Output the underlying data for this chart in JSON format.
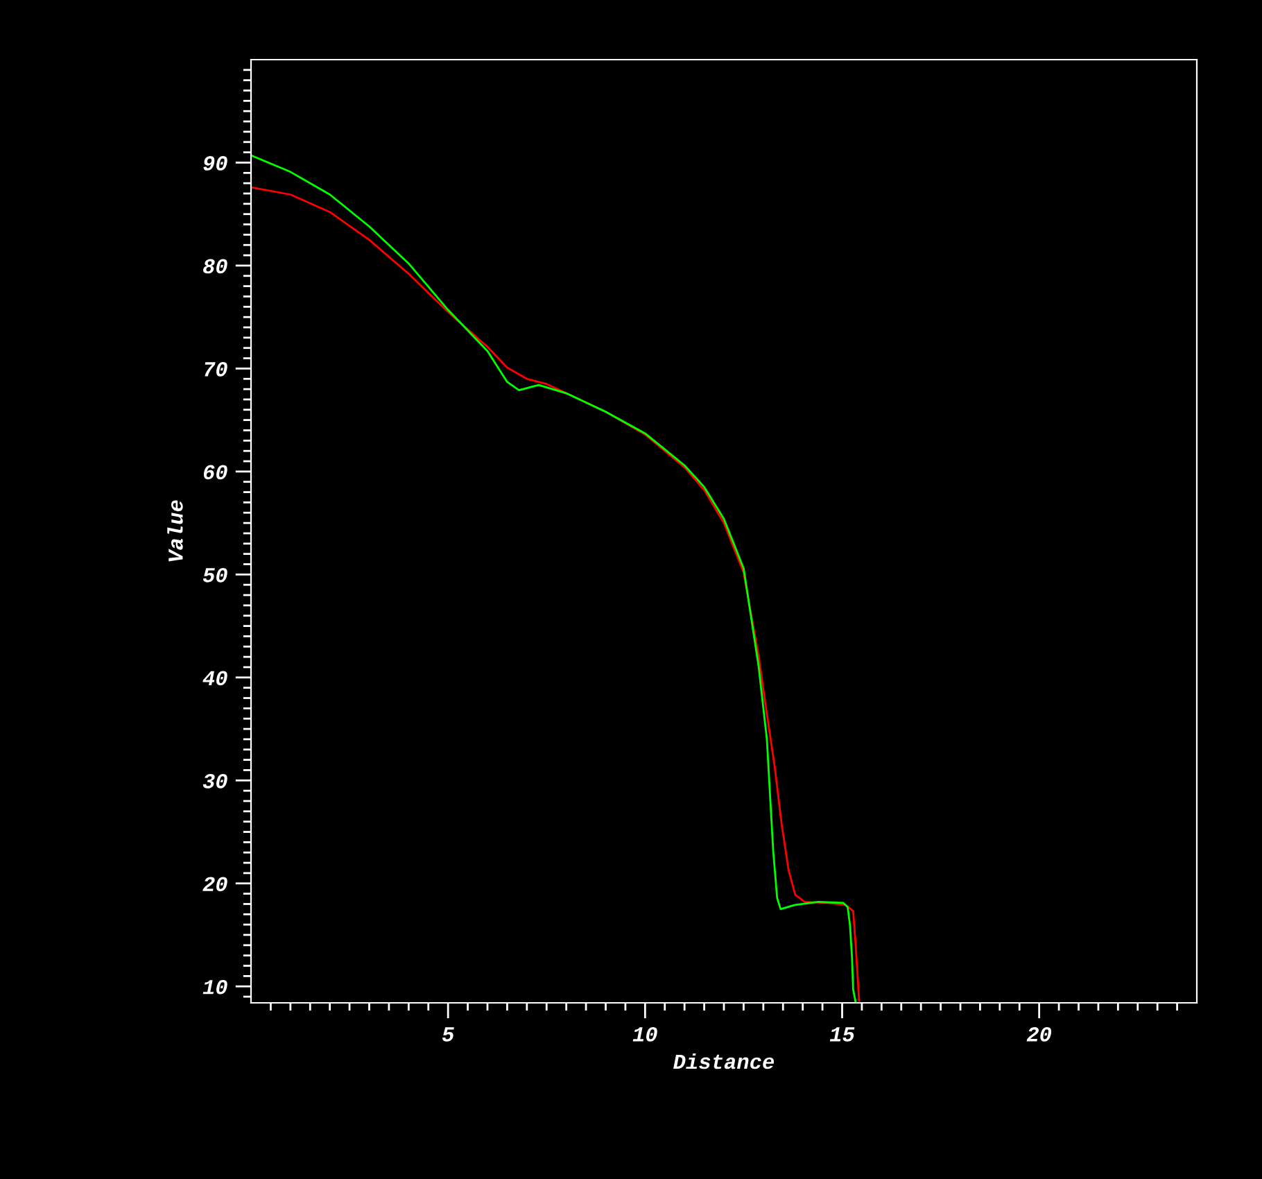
{
  "chart_data": {
    "type": "line",
    "xlabel": "Distance",
    "ylabel": "Value",
    "xlim": [
      0,
      24
    ],
    "ylim": [
      8.4,
      100
    ],
    "xticks": [
      {
        "value": 0.5,
        "label": null
      },
      {
        "value": 1,
        "label": null
      },
      {
        "value": 1.5,
        "label": null
      },
      {
        "value": 2,
        "label": null
      },
      {
        "value": 2.5,
        "label": null
      },
      {
        "value": 3,
        "label": null
      },
      {
        "value": 3.5,
        "label": null
      },
      {
        "value": 4,
        "label": null
      },
      {
        "value": 4.5,
        "label": null
      },
      5,
      {
        "value": 5.5,
        "label": null
      },
      {
        "value": 6,
        "label": null
      },
      {
        "value": 6.5,
        "label": null
      },
      {
        "value": 7,
        "label": null
      },
      {
        "value": 7.5,
        "label": null
      },
      {
        "value": 8,
        "label": null
      },
      {
        "value": 8.5,
        "label": null
      },
      {
        "value": 9,
        "label": null
      },
      {
        "value": 9.5,
        "label": null
      },
      10,
      {
        "value": 10.5,
        "label": null
      },
      {
        "value": 11,
        "label": null
      },
      {
        "value": 11.5,
        "label": null
      },
      {
        "value": 12,
        "label": null
      },
      {
        "value": 12.5,
        "label": null
      },
      {
        "value": 13,
        "label": null
      },
      {
        "value": 13.5,
        "label": null
      },
      {
        "value": 14,
        "label": null
      },
      {
        "value": 14.5,
        "label": null
      },
      15,
      {
        "value": 15.5,
        "label": null
      },
      {
        "value": 16,
        "label": null
      },
      {
        "value": 16.5,
        "label": null
      },
      {
        "value": 17,
        "label": null
      },
      {
        "value": 17.5,
        "label": null
      },
      {
        "value": 18,
        "label": null
      },
      {
        "value": 18.5,
        "label": null
      },
      {
        "value": 19,
        "label": null
      },
      {
        "value": 19.5,
        "label": null
      },
      20,
      {
        "value": 20.5,
        "label": null
      },
      {
        "value": 21,
        "label": null
      },
      {
        "value": 21.5,
        "label": null
      },
      {
        "value": 22,
        "label": null
      },
      {
        "value": 22.5,
        "label": null
      },
      {
        "value": 23,
        "label": null
      },
      {
        "value": 23.5,
        "label": null
      }
    ],
    "yticks": [
      {
        "value": 9,
        "label": null
      },
      10,
      {
        "value": 11,
        "label": null
      },
      {
        "value": 12,
        "label": null
      },
      {
        "value": 13,
        "label": null
      },
      {
        "value": 14,
        "label": null
      },
      {
        "value": 15,
        "label": null
      },
      {
        "value": 16,
        "label": null
      },
      {
        "value": 17,
        "label": null
      },
      {
        "value": 18,
        "label": null
      },
      {
        "value": 19,
        "label": null
      },
      20,
      {
        "value": 21,
        "label": null
      },
      {
        "value": 22,
        "label": null
      },
      {
        "value": 23,
        "label": null
      },
      {
        "value": 24,
        "label": null
      },
      {
        "value": 25,
        "label": null
      },
      {
        "value": 26,
        "label": null
      },
      {
        "value": 27,
        "label": null
      },
      {
        "value": 28,
        "label": null
      },
      {
        "value": 29,
        "label": null
      },
      30,
      {
        "value": 31,
        "label": null
      },
      {
        "value": 32,
        "label": null
      },
      {
        "value": 33,
        "label": null
      },
      {
        "value": 34,
        "label": null
      },
      {
        "value": 35,
        "label": null
      },
      {
        "value": 36,
        "label": null
      },
      {
        "value": 37,
        "label": null
      },
      {
        "value": 38,
        "label": null
      },
      {
        "value": 39,
        "label": null
      },
      40,
      {
        "value": 41,
        "label": null
      },
      {
        "value": 42,
        "label": null
      },
      {
        "value": 43,
        "label": null
      },
      {
        "value": 44,
        "label": null
      },
      {
        "value": 45,
        "label": null
      },
      {
        "value": 46,
        "label": null
      },
      {
        "value": 47,
        "label": null
      },
      {
        "value": 48,
        "label": null
      },
      {
        "value": 49,
        "label": null
      },
      50,
      {
        "value": 51,
        "label": null
      },
      {
        "value": 52,
        "label": null
      },
      {
        "value": 53,
        "label": null
      },
      {
        "value": 54,
        "label": null
      },
      {
        "value": 55,
        "label": null
      },
      {
        "value": 56,
        "label": null
      },
      {
        "value": 57,
        "label": null
      },
      {
        "value": 58,
        "label": null
      },
      {
        "value": 59,
        "label": null
      },
      60,
      {
        "value": 61,
        "label": null
      },
      {
        "value": 62,
        "label": null
      },
      {
        "value": 63,
        "label": null
      },
      {
        "value": 64,
        "label": null
      },
      {
        "value": 65,
        "label": null
      },
      {
        "value": 66,
        "label": null
      },
      {
        "value": 67,
        "label": null
      },
      {
        "value": 68,
        "label": null
      },
      {
        "value": 69,
        "label": null
      },
      70,
      {
        "value": 71,
        "label": null
      },
      {
        "value": 72,
        "label": null
      },
      {
        "value": 73,
        "label": null
      },
      {
        "value": 74,
        "label": null
      },
      {
        "value": 75,
        "label": null
      },
      {
        "value": 76,
        "label": null
      },
      {
        "value": 77,
        "label": null
      },
      {
        "value": 78,
        "label": null
      },
      {
        "value": 79,
        "label": null
      },
      80,
      {
        "value": 81,
        "label": null
      },
      {
        "value": 82,
        "label": null
      },
      {
        "value": 83,
        "label": null
      },
      {
        "value": 84,
        "label": null
      },
      {
        "value": 85,
        "label": null
      },
      {
        "value": 86,
        "label": null
      },
      {
        "value": 87,
        "label": null
      },
      {
        "value": 88,
        "label": null
      },
      {
        "value": 89,
        "label": null
      },
      90,
      {
        "value": 91,
        "label": null
      },
      {
        "value": 92,
        "label": null
      },
      {
        "value": 93,
        "label": null
      },
      {
        "value": 94,
        "label": null
      },
      {
        "value": 95,
        "label": null
      },
      {
        "value": 96,
        "label": null
      },
      {
        "value": 97,
        "label": null
      },
      {
        "value": 98,
        "label": null
      },
      {
        "value": 99,
        "label": null
      }
    ],
    "grid": false,
    "marker": "none",
    "line_style": "solid",
    "series": [
      {
        "color": "#ff0000",
        "x": [
          0,
          1,
          2,
          3,
          4,
          5,
          6,
          6.5,
          7,
          7.5,
          8,
          9,
          10,
          11,
          11.5,
          12,
          12.5,
          12.88,
          13.05,
          13.29,
          13.46,
          13.64,
          13.81,
          14.05,
          14.63,
          15.1,
          15.28,
          15.34,
          15.4,
          15.43
        ],
        "values": [
          87.6,
          86.9,
          85.2,
          82.5,
          79.2,
          75.5,
          72.1,
          70.1,
          69.0,
          68.5,
          67.6,
          65.8,
          63.6,
          60.4,
          58.2,
          55.0,
          50.2,
          42.1,
          37.5,
          31.3,
          25.9,
          21.3,
          18.9,
          18.2,
          18.1,
          17.9,
          17.3,
          14.2,
          10.5,
          8.6
        ]
      },
      {
        "color": "#00ff00",
        "x": [
          0,
          1,
          2,
          3,
          4,
          5,
          6,
          6.5,
          6.8,
          7.3,
          8,
          9,
          10,
          11,
          11.5,
          12,
          12.5,
          12.88,
          13.09,
          13.17,
          13.25,
          13.35,
          13.44,
          13.8,
          14.4,
          15.03,
          15.14,
          15.2,
          15.25,
          15.28,
          15.34
        ],
        "values": [
          90.7,
          89.1,
          86.9,
          83.8,
          80.2,
          75.7,
          71.7,
          68.7,
          67.9,
          68.4,
          67.6,
          65.8,
          63.7,
          60.6,
          58.5,
          55.4,
          50.6,
          41.1,
          34.0,
          28.6,
          23.2,
          18.6,
          17.5,
          17.9,
          18.2,
          18.1,
          17.7,
          15.9,
          12.8,
          9.7,
          8.5
        ]
      }
    ]
  }
}
